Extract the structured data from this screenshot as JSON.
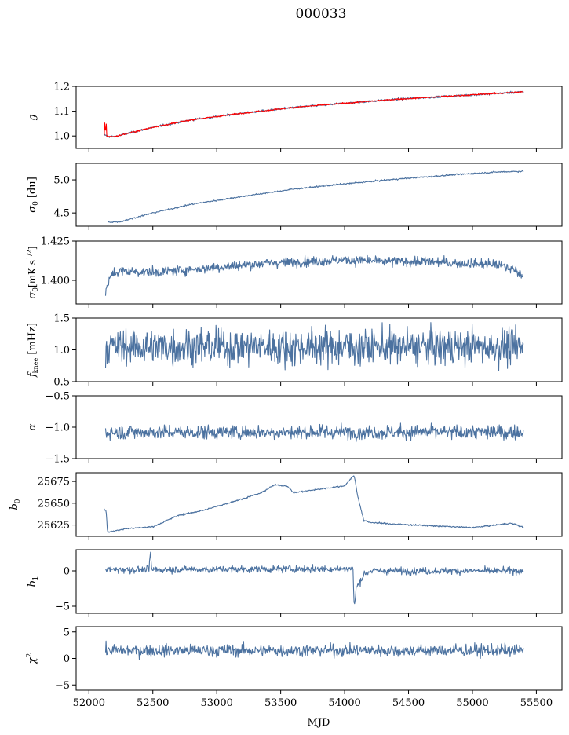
{
  "title": "000033",
  "xlabel": "MJD",
  "chart_data": [
    {
      "id": "g",
      "type": "line",
      "ylabel": "g",
      "ylabel_html": "<tspan font-style='italic'>g</tspan>",
      "xlim": [
        51900,
        55700
      ],
      "ylim": [
        0.95,
        1.2
      ],
      "yticks": [
        1.0,
        1.1,
        1.2
      ],
      "ytick_labels": [
        "1.0",
        "1.1",
        "1.2"
      ],
      "series": [
        {
          "color": "#4c72a0",
          "x": [
            52120,
            52150,
            52200,
            52300,
            52500,
            52800,
            53200,
            53600,
            54000,
            54400,
            54800,
            55200,
            55400
          ],
          "y": [
            1.005,
            0.998,
            0.997,
            1.01,
            1.035,
            1.065,
            1.092,
            1.115,
            1.132,
            1.148,
            1.16,
            1.172,
            1.178
          ],
          "noise": 0.003
        },
        {
          "color": "#ff0000",
          "x": [
            52120,
            52125,
            52130,
            52135,
            52140,
            52150,
            52200,
            52300,
            52500,
            52800,
            53200,
            53600,
            54000,
            54400,
            54800,
            55200,
            55400
          ],
          "y": [
            1.0,
            1.065,
            1.0,
            1.06,
            1.0,
            0.998,
            0.997,
            1.01,
            1.035,
            1.065,
            1.092,
            1.115,
            1.132,
            1.148,
            1.16,
            1.172,
            1.178
          ],
          "noise": 0.002
        }
      ]
    },
    {
      "id": "sigma0",
      "type": "line",
      "ylabel": "σ0 [du]",
      "ylim": [
        4.3,
        5.25
      ],
      "yticks": [
        4.5,
        5.0
      ],
      "ytick_labels": [
        "4.5",
        "5.0"
      ],
      "series": [
        {
          "color": "#4c72a0",
          "x": [
            52150,
            52250,
            52500,
            52800,
            53200,
            53600,
            54000,
            54400,
            54800,
            55200,
            55400
          ],
          "y": [
            4.36,
            4.37,
            4.5,
            4.63,
            4.75,
            4.86,
            4.94,
            5.01,
            5.07,
            5.12,
            5.13
          ],
          "noise": 0.008
        }
      ]
    },
    {
      "id": "sigma0_mk",
      "type": "line",
      "ylabel": "σ0[mK s^1/2]",
      "ylim": [
        1.385,
        1.425
      ],
      "yticks": [
        1.4,
        1.425
      ],
      "ytick_labels": [
        "1.400",
        "1.425"
      ],
      "series": [
        {
          "color": "#4c72a0",
          "x": [
            52130,
            52180,
            52250,
            52500,
            52800,
            53100,
            53400,
            53700,
            54000,
            54300,
            54600,
            54900,
            55200,
            55350,
            55400
          ],
          "y": [
            1.393,
            1.404,
            1.406,
            1.405,
            1.407,
            1.409,
            1.411,
            1.412,
            1.413,
            1.412,
            1.412,
            1.411,
            1.41,
            1.406,
            1.402
          ],
          "noise": 0.0022
        }
      ]
    },
    {
      "id": "fknee",
      "type": "line",
      "ylabel": "f_knee [mHz]",
      "ylim": [
        0.5,
        1.5
      ],
      "yticks": [
        0.5,
        1.0,
        1.5
      ],
      "ytick_labels": [
        "0.5",
        "1.0",
        "1.5"
      ],
      "series": [
        {
          "color": "#4c72a0",
          "x": [
            52130,
            55400
          ],
          "y": [
            1.05,
            1.05
          ],
          "noise": 0.2,
          "clip": [
            0.55,
            1.5
          ]
        }
      ]
    },
    {
      "id": "alpha",
      "type": "line",
      "ylabel": "α",
      "ylim": [
        -1.5,
        -0.5
      ],
      "yticks": [
        -1.5,
        -1.0,
        -0.5
      ],
      "ytick_labels": [
        "−1.5",
        "−1.0",
        "−0.5"
      ],
      "series": [
        {
          "color": "#4c72a0",
          "x": [
            52130,
            55400
          ],
          "y": [
            -1.08,
            -1.08
          ],
          "noise": 0.08
        }
      ]
    },
    {
      "id": "b0",
      "type": "line",
      "ylabel": "b0",
      "ylim": [
        25612,
        25685
      ],
      "yticks": [
        25625,
        25650,
        25675
      ],
      "ytick_labels": [
        "25625",
        "25650",
        "25675"
      ],
      "series": [
        {
          "color": "#4c72a0",
          "x": [
            52120,
            52135,
            52145,
            52160,
            52300,
            52420,
            52500,
            52700,
            52900,
            53200,
            53350,
            53450,
            53550,
            53600,
            53800,
            54000,
            54060,
            54075,
            54100,
            54150,
            54200,
            54400,
            54700,
            55000,
            55300,
            55350,
            55400
          ],
          "y": [
            25643,
            25642,
            25617,
            25617,
            25621,
            25622,
            25623,
            25636,
            25642,
            25655,
            25662,
            25671,
            25670,
            25662,
            25666,
            25670,
            25680,
            25682,
            25660,
            25630,
            25628,
            25626,
            25624,
            25622,
            25627,
            25625,
            25622
          ],
          "noise": 0.6
        }
      ]
    },
    {
      "id": "b1",
      "type": "line",
      "ylabel": "b1",
      "ylim": [
        -6,
        3
      ],
      "yticks": [
        -5,
        0
      ],
      "ytick_labels": [
        "−5",
        "0"
      ],
      "series": [
        {
          "color": "#4c72a0",
          "x": [
            52130,
            52470,
            52480,
            52490,
            54040,
            54065,
            54075,
            54090,
            54150,
            54200,
            55400
          ],
          "y": [
            0.2,
            0.2,
            2.8,
            0.2,
            0.3,
            0.5,
            -5.3,
            -2.5,
            -0.5,
            0.0,
            0.0
          ],
          "noise": 0.35
        }
      ]
    },
    {
      "id": "chi2",
      "type": "line",
      "ylabel": "χ²",
      "ylim": [
        -6,
        6
      ],
      "yticks": [
        -5,
        0,
        5
      ],
      "ytick_labels": [
        "−5",
        "0",
        "5"
      ],
      "series": [
        {
          "color": "#4c72a0",
          "x": [
            52130,
            55400
          ],
          "y": [
            1.5,
            1.5
          ],
          "noise": 0.8
        }
      ]
    }
  ],
  "xaxis": {
    "ticks": [
      52000,
      52500,
      53000,
      53500,
      54000,
      54500,
      55000,
      55500
    ],
    "tick_labels": [
      "52000",
      "52500",
      "53000",
      "53500",
      "54000",
      "54500",
      "55000",
      "55500"
    ]
  }
}
